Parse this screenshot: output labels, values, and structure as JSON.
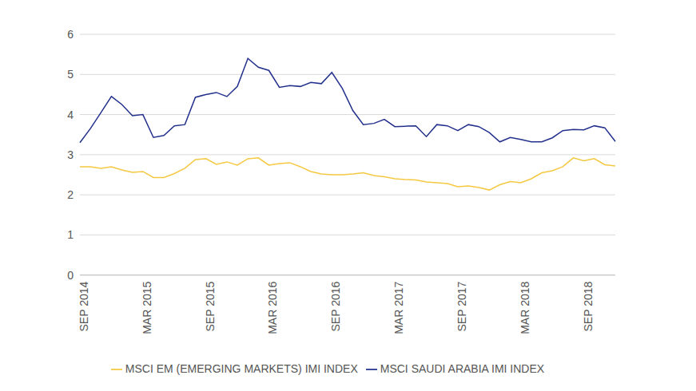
{
  "chart_data": {
    "type": "line",
    "categories": [
      "SEP 2014",
      null,
      null,
      null,
      null,
      null,
      "MAR 2015",
      null,
      null,
      null,
      null,
      null,
      "SEP 2015",
      null,
      null,
      null,
      null,
      null,
      "MAR 2016",
      null,
      null,
      null,
      null,
      null,
      "SEP 2016",
      null,
      null,
      null,
      null,
      null,
      "MAR 2017",
      null,
      null,
      null,
      null,
      null,
      "SEP 2017",
      null,
      null,
      null,
      null,
      null,
      "MAR 2018",
      null,
      null,
      null,
      null,
      null,
      "SEP 2018",
      null,
      null,
      null
    ],
    "series": [
      {
        "name": "MSCI SAUDI ARABIA IMI INDEX",
        "color": "#23318c",
        "values": [
          3.3,
          3.65,
          4.05,
          4.45,
          4.25,
          3.97,
          4.0,
          3.43,
          3.48,
          3.72,
          3.75,
          4.43,
          4.5,
          4.55,
          4.45,
          4.7,
          5.4,
          5.18,
          5.1,
          4.68,
          4.72,
          4.7,
          4.8,
          4.77,
          5.05,
          4.65,
          4.1,
          3.75,
          3.78,
          3.88,
          3.7,
          3.71,
          3.72,
          3.45,
          3.75,
          3.72,
          3.6,
          3.75,
          3.7,
          3.55,
          3.32,
          3.43,
          3.38,
          3.32,
          3.32,
          3.42,
          3.6,
          3.63,
          3.62,
          3.72,
          3.67,
          3.33
        ]
      },
      {
        "name": "MSCI EM (EMERGING MARKETS) IMI INDEX",
        "color": "#f5c842",
        "values": [
          2.7,
          2.7,
          2.66,
          2.7,
          2.62,
          2.56,
          2.58,
          2.43,
          2.43,
          2.53,
          2.66,
          2.88,
          2.9,
          2.76,
          2.82,
          2.74,
          2.9,
          2.92,
          2.74,
          2.78,
          2.8,
          2.7,
          2.58,
          2.52,
          2.5,
          2.5,
          2.52,
          2.55,
          2.48,
          2.45,
          2.4,
          2.38,
          2.37,
          2.32,
          2.3,
          2.28,
          2.2,
          2.22,
          2.18,
          2.12,
          2.25,
          2.33,
          2.3,
          2.4,
          2.55,
          2.6,
          2.7,
          2.92,
          2.85,
          2.9,
          2.75,
          2.72
        ]
      }
    ],
    "ylim": [
      0,
      6
    ],
    "yticks": [
      0,
      1,
      2,
      3,
      4,
      5,
      6
    ],
    "grid": true,
    "legend": "bottom"
  }
}
